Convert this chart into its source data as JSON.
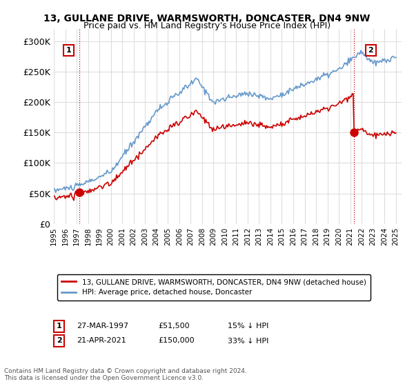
{
  "title1": "13, GULLANE DRIVE, WARMSWORTH, DONCASTER, DN4 9NW",
  "title2": "Price paid vs. HM Land Registry's House Price Index (HPI)",
  "legend_label1": "13, GULLANE DRIVE, WARMSWORTH, DONCASTER, DN4 9NW (detached house)",
  "legend_label2": "HPI: Average price, detached house, Doncaster",
  "sale1_date": "27-MAR-1997",
  "sale1_price": "£51,500",
  "sale1_hpi": "15% ↓ HPI",
  "sale2_date": "21-APR-2021",
  "sale2_price": "£150,000",
  "sale2_hpi": "33% ↓ HPI",
  "footnote": "Contains HM Land Registry data © Crown copyright and database right 2024.\nThis data is licensed under the Open Government Licence v3.0.",
  "hpi_color": "#6699cc",
  "price_color": "#cc0000",
  "grid_color": "#dddddd",
  "background_color": "#ffffff",
  "ylim": [
    0,
    320000
  ],
  "yticks": [
    0,
    50000,
    100000,
    150000,
    200000,
    250000,
    300000
  ],
  "ytick_labels": [
    "£0",
    "£50K",
    "£100K",
    "£150K",
    "£200K",
    "£250K",
    "£300K"
  ]
}
